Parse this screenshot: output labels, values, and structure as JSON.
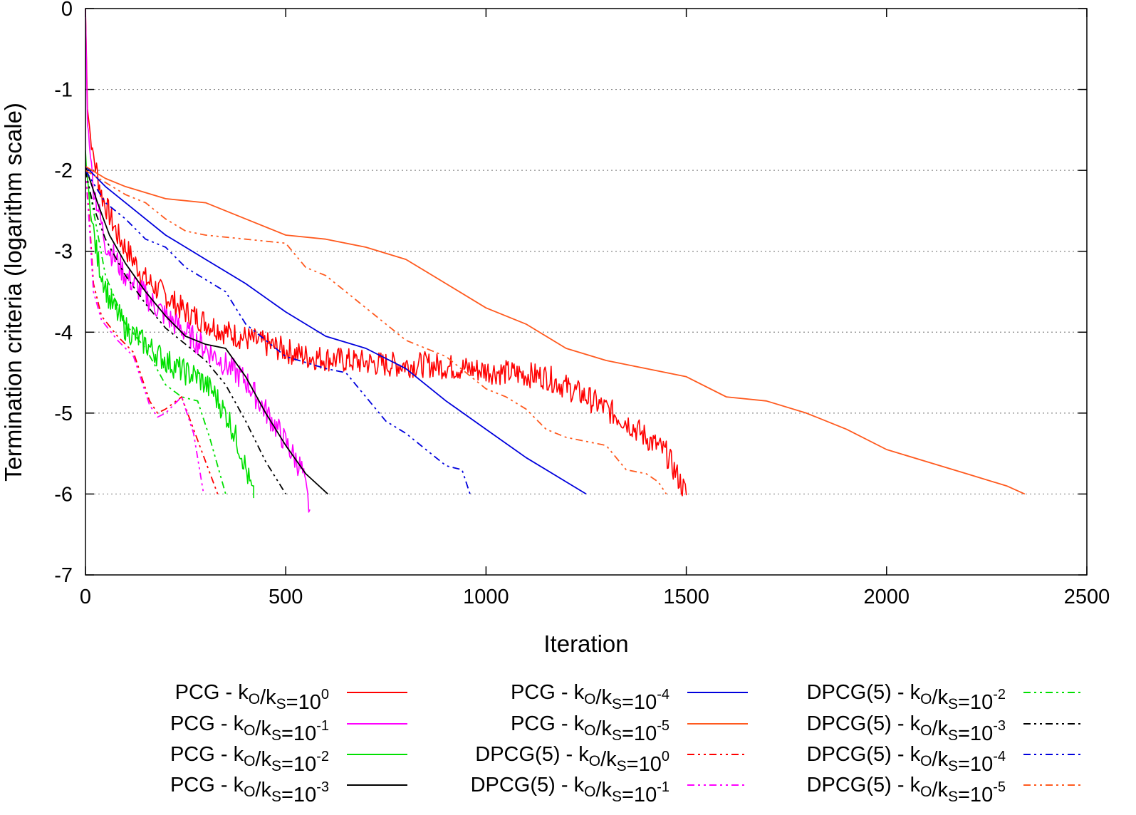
{
  "chart_data": {
    "type": "line",
    "title": "",
    "xlabel": "Iteration",
    "ylabel": "Termination criteria (logarithm scale)",
    "xlim": [
      0,
      2500
    ],
    "ylim": [
      -7,
      0
    ],
    "xticks": [
      0,
      500,
      1000,
      1500,
      2000,
      2500
    ],
    "xtick_labels": [
      "0",
      "500",
      "1000",
      "1500",
      "2000",
      "2500"
    ],
    "yticks": [
      0,
      -1,
      -2,
      -3,
      -4,
      -5,
      -6,
      -7
    ],
    "ytick_labels": [
      "0",
      "-1",
      "-2",
      "-3",
      "-4",
      "-5",
      "-6",
      "-7"
    ],
    "grid": "horizontal dotted",
    "legend_position": "bottom",
    "series": [
      {
        "name": "PCG - kO/kS=10^0",
        "label_main": "PCG - k",
        "sub1": "O",
        "mid": "/k",
        "sub2": "S",
        "eq": "=10",
        "exp": "0",
        "color": "#ff0000",
        "dash": "solid",
        "noisy": true,
        "points": [
          [
            0,
            0
          ],
          [
            5,
            -1.2
          ],
          [
            15,
            -1.7
          ],
          [
            40,
            -2.3
          ],
          [
            80,
            -2.8
          ],
          [
            150,
            -3.35
          ],
          [
            250,
            -3.75
          ],
          [
            350,
            -4.0
          ],
          [
            450,
            -4.15
          ],
          [
            550,
            -4.3
          ],
          [
            650,
            -4.35
          ],
          [
            750,
            -4.4
          ],
          [
            850,
            -4.4
          ],
          [
            950,
            -4.45
          ],
          [
            1050,
            -4.5
          ],
          [
            1150,
            -4.55
          ],
          [
            1250,
            -4.8
          ],
          [
            1350,
            -5.1
          ],
          [
            1450,
            -5.5
          ],
          [
            1500,
            -6.0
          ]
        ]
      },
      {
        "name": "PCG - kO/kS=10^-1",
        "label_main": "PCG - k",
        "sub1": "O",
        "mid": "/k",
        "sub2": "S",
        "eq": "=10",
        "exp": "-1",
        "color": "#ff00ff",
        "dash": "solid",
        "noisy": true,
        "points": [
          [
            0,
            0
          ],
          [
            5,
            -1.4
          ],
          [
            20,
            -2.2
          ],
          [
            50,
            -2.9
          ],
          [
            100,
            -3.3
          ],
          [
            200,
            -3.8
          ],
          [
            300,
            -4.2
          ],
          [
            400,
            -4.6
          ],
          [
            480,
            -5.2
          ],
          [
            540,
            -5.7
          ],
          [
            560,
            -6.2
          ]
        ]
      },
      {
        "name": "PCG - kO/kS=10^-2",
        "label_main": "PCG - k",
        "sub1": "O",
        "mid": "/k",
        "sub2": "S",
        "eq": "=10",
        "exp": "-2",
        "color": "#00e000",
        "dash": "solid",
        "noisy": true,
        "points": [
          [
            0,
            -1.8
          ],
          [
            10,
            -2.4
          ],
          [
            30,
            -3.1
          ],
          [
            60,
            -3.6
          ],
          [
            100,
            -3.95
          ],
          [
            150,
            -4.15
          ],
          [
            200,
            -4.35
          ],
          [
            250,
            -4.5
          ],
          [
            280,
            -4.55
          ],
          [
            320,
            -4.75
          ],
          [
            360,
            -5.1
          ],
          [
            390,
            -5.5
          ],
          [
            420,
            -6.05
          ]
        ]
      },
      {
        "name": "PCG - kO/kS=10^-3",
        "label_main": "PCG - k",
        "sub1": "O",
        "mid": "/k",
        "sub2": "S",
        "eq": "=10",
        "exp": "-3",
        "color": "#000000",
        "dash": "solid",
        "noisy": false,
        "points": [
          [
            0,
            -1.95
          ],
          [
            30,
            -2.4
          ],
          [
            60,
            -2.8
          ],
          [
            100,
            -3.15
          ],
          [
            150,
            -3.5
          ],
          [
            200,
            -3.8
          ],
          [
            250,
            -4.05
          ],
          [
            300,
            -4.15
          ],
          [
            350,
            -4.2
          ],
          [
            400,
            -4.55
          ],
          [
            450,
            -5.0
          ],
          [
            500,
            -5.4
          ],
          [
            550,
            -5.75
          ],
          [
            605,
            -6.0
          ]
        ]
      },
      {
        "name": "PCG - kO/kS=10^-4",
        "label_main": "PCG - k",
        "sub1": "O",
        "mid": "/k",
        "sub2": "S",
        "eq": "=10",
        "exp": "-4",
        "color": "#0000dd",
        "dash": "solid",
        "noisy": false,
        "points": [
          [
            0,
            -1.95
          ],
          [
            50,
            -2.2
          ],
          [
            100,
            -2.4
          ],
          [
            150,
            -2.6
          ],
          [
            200,
            -2.8
          ],
          [
            250,
            -2.95
          ],
          [
            300,
            -3.1
          ],
          [
            400,
            -3.4
          ],
          [
            500,
            -3.75
          ],
          [
            600,
            -4.05
          ],
          [
            700,
            -4.2
          ],
          [
            800,
            -4.45
          ],
          [
            900,
            -4.85
          ],
          [
            1000,
            -5.2
          ],
          [
            1100,
            -5.55
          ],
          [
            1200,
            -5.85
          ],
          [
            1250,
            -6.0
          ]
        ]
      },
      {
        "name": "PCG - kO/kS=10^-5",
        "label_main": "PCG - k",
        "sub1": "O",
        "mid": "/k",
        "sub2": "S",
        "eq": "=10",
        "exp": "-5",
        "color": "#ff5a1f",
        "dash": "solid",
        "noisy": false,
        "points": [
          [
            0,
            -1.95
          ],
          [
            50,
            -2.1
          ],
          [
            100,
            -2.2
          ],
          [
            200,
            -2.35
          ],
          [
            300,
            -2.4
          ],
          [
            400,
            -2.6
          ],
          [
            500,
            -2.8
          ],
          [
            600,
            -2.85
          ],
          [
            700,
            -2.95
          ],
          [
            800,
            -3.1
          ],
          [
            900,
            -3.4
          ],
          [
            1000,
            -3.7
          ],
          [
            1100,
            -3.9
          ],
          [
            1200,
            -4.2
          ],
          [
            1300,
            -4.35
          ],
          [
            1400,
            -4.45
          ],
          [
            1500,
            -4.55
          ],
          [
            1600,
            -4.8
          ],
          [
            1700,
            -4.85
          ],
          [
            1800,
            -5.0
          ],
          [
            1900,
            -5.2
          ],
          [
            2000,
            -5.45
          ],
          [
            2100,
            -5.6
          ],
          [
            2200,
            -5.75
          ],
          [
            2300,
            -5.9
          ],
          [
            2345,
            -6.0
          ]
        ]
      },
      {
        "name": "DPCG(5) - kO/kS=10^0",
        "label_main": "DPCG(5) - k",
        "sub1": "O",
        "mid": "/k",
        "sub2": "S",
        "eq": "=10",
        "exp": "0",
        "color": "#ff0000",
        "dash": "10,5,3,5,3,5",
        "noisy": false,
        "points": [
          [
            0,
            -2.0
          ],
          [
            10,
            -2.6
          ],
          [
            20,
            -3.4
          ],
          [
            40,
            -3.8
          ],
          [
            80,
            -4.05
          ],
          [
            120,
            -4.25
          ],
          [
            160,
            -4.85
          ],
          [
            180,
            -5.0
          ],
          [
            200,
            -4.95
          ],
          [
            240,
            -4.8
          ],
          [
            270,
            -5.2
          ],
          [
            300,
            -5.6
          ],
          [
            330,
            -6.0
          ]
        ]
      },
      {
        "name": "DPCG(5) - kO/kS=10^-1",
        "label_main": "DPCG(5) - k",
        "sub1": "O",
        "mid": "/k",
        "sub2": "S",
        "eq": "=10",
        "exp": "-1",
        "color": "#ff00ff",
        "dash": "10,5,3,5,3,5",
        "noisy": false,
        "points": [
          [
            0,
            -2.0
          ],
          [
            10,
            -2.7
          ],
          [
            20,
            -3.5
          ],
          [
            40,
            -3.85
          ],
          [
            80,
            -4.1
          ],
          [
            120,
            -4.3
          ],
          [
            160,
            -4.9
          ],
          [
            180,
            -5.05
          ],
          [
            200,
            -5.0
          ],
          [
            240,
            -4.8
          ],
          [
            270,
            -5.25
          ],
          [
            295,
            -6.0
          ]
        ]
      },
      {
        "name": "DPCG(5) - kO/kS=10^-2",
        "label_main": "DPCG(5) - k",
        "sub1": "O",
        "mid": "/k",
        "sub2": "S",
        "eq": "=10",
        "exp": "-2",
        "color": "#00e000",
        "dash": "10,5,3,5,3,5",
        "noisy": false,
        "points": [
          [
            0,
            -2.0
          ],
          [
            20,
            -2.5
          ],
          [
            50,
            -3.3
          ],
          [
            100,
            -3.9
          ],
          [
            150,
            -4.2
          ],
          [
            200,
            -4.65
          ],
          [
            240,
            -4.8
          ],
          [
            280,
            -4.85
          ],
          [
            310,
            -5.3
          ],
          [
            350,
            -6.0
          ]
        ]
      },
      {
        "name": "DPCG(5) - kO/kS=10^-3",
        "label_main": "DPCG(5) - k",
        "sub1": "O",
        "mid": "/k",
        "sub2": "S",
        "eq": "=10",
        "exp": "-3",
        "color": "#000000",
        "dash": "10,5,3,5,3,5",
        "noisy": false,
        "points": [
          [
            0,
            -2.0
          ],
          [
            20,
            -2.45
          ],
          [
            50,
            -2.85
          ],
          [
            100,
            -3.3
          ],
          [
            150,
            -3.65
          ],
          [
            200,
            -3.95
          ],
          [
            250,
            -4.15
          ],
          [
            300,
            -4.35
          ],
          [
            350,
            -4.65
          ],
          [
            400,
            -5.1
          ],
          [
            450,
            -5.6
          ],
          [
            500,
            -6.0
          ]
        ]
      },
      {
        "name": "DPCG(5) - kO/kS=10^-4",
        "label_main": "DPCG(5) - k",
        "sub1": "O",
        "mid": "/k",
        "sub2": "S",
        "eq": "=10",
        "exp": "-4",
        "color": "#0000dd",
        "dash": "10,5,3,5,3,5",
        "noisy": false,
        "points": [
          [
            0,
            -2.0
          ],
          [
            50,
            -2.4
          ],
          [
            100,
            -2.6
          ],
          [
            150,
            -2.85
          ],
          [
            200,
            -2.95
          ],
          [
            250,
            -3.2
          ],
          [
            300,
            -3.35
          ],
          [
            350,
            -3.5
          ],
          [
            400,
            -3.9
          ],
          [
            450,
            -4.1
          ],
          [
            500,
            -4.3
          ],
          [
            600,
            -4.45
          ],
          [
            650,
            -4.5
          ],
          [
            700,
            -4.8
          ],
          [
            750,
            -5.1
          ],
          [
            800,
            -5.25
          ],
          [
            850,
            -5.45
          ],
          [
            900,
            -5.65
          ],
          [
            940,
            -5.7
          ],
          [
            960,
            -6.0
          ]
        ]
      },
      {
        "name": "DPCG(5) - kO/kS=10^-5",
        "label_main": "DPCG(5) - k",
        "sub1": "O",
        "mid": "/k",
        "sub2": "S",
        "eq": "=10",
        "exp": "-5",
        "color": "#ff5a1f",
        "dash": "10,5,3,5,3,5",
        "noisy": false,
        "points": [
          [
            0,
            -2.0
          ],
          [
            100,
            -2.3
          ],
          [
            150,
            -2.4
          ],
          [
            200,
            -2.6
          ],
          [
            250,
            -2.75
          ],
          [
            300,
            -2.8
          ],
          [
            400,
            -2.85
          ],
          [
            500,
            -2.9
          ],
          [
            550,
            -3.2
          ],
          [
            600,
            -3.3
          ],
          [
            650,
            -3.5
          ],
          [
            700,
            -3.7
          ],
          [
            800,
            -4.1
          ],
          [
            900,
            -4.3
          ],
          [
            950,
            -4.5
          ],
          [
            1000,
            -4.7
          ],
          [
            1050,
            -4.8
          ],
          [
            1100,
            -4.95
          ],
          [
            1150,
            -5.2
          ],
          [
            1200,
            -5.3
          ],
          [
            1300,
            -5.4
          ],
          [
            1350,
            -5.7
          ],
          [
            1400,
            -5.75
          ],
          [
            1430,
            -5.85
          ],
          [
            1450,
            -6.0
          ]
        ]
      }
    ]
  }
}
